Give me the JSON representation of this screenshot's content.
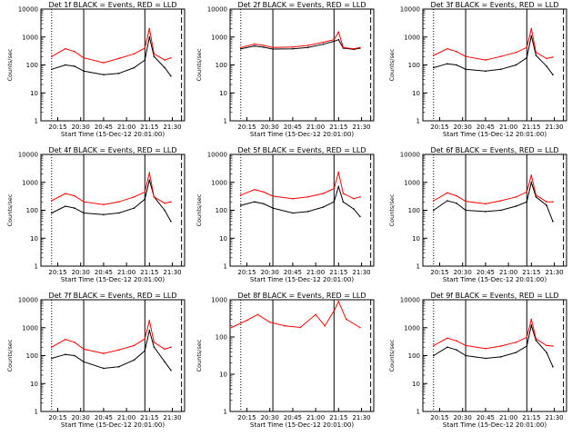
{
  "figure": {
    "xlabel": "Start Time (15-Dec-12 20:01:00)",
    "ylabel": "Counts/sec",
    "x_tick_labels": [
      "20:15",
      "20:30",
      "20:45",
      "21:00",
      "21:15",
      "21:30"
    ],
    "y_tick_labels": [
      "1",
      "10",
      "100",
      "1000",
      "10000"
    ],
    "colors": {
      "events": "#000000",
      "lld": "#ff0000",
      "axes": "#000000",
      "background": "#ffffff"
    }
  },
  "chart_data": [
    {
      "type": "line",
      "title": "Det 1f BLACK = Events, RED = LLD",
      "x": [
        "20:11",
        "20:20",
        "20:26",
        "20:32",
        "20:45",
        "20:55",
        "21:05",
        "21:12",
        "21:15",
        "21:18",
        "21:25",
        "21:29"
      ],
      "ylim": [
        1,
        10000
      ],
      "yscale": "log",
      "series": [
        {
          "name": "Events",
          "color": "#000000",
          "values": [
            70,
            100,
            90,
            60,
            45,
            50,
            80,
            150,
            1000,
            200,
            80,
            40
          ]
        },
        {
          "name": "LLD",
          "color": "#ff0000",
          "values": [
            200,
            380,
            300,
            180,
            120,
            170,
            250,
            400,
            2000,
            250,
            150,
            180
          ]
        }
      ]
    },
    {
      "type": "line",
      "title": "Det 2f BLACK = Events, RED = LLD",
      "x": [
        "20:11",
        "20:20",
        "20:26",
        "20:32",
        "20:45",
        "20:55",
        "21:05",
        "21:12",
        "21:15",
        "21:18",
        "21:25",
        "21:29"
      ],
      "ylim": [
        1,
        10000
      ],
      "yscale": "log",
      "series": [
        {
          "name": "Events",
          "color": "#000000",
          "values": [
            380,
            480,
            430,
            370,
            380,
            420,
            550,
            700,
            800,
            400,
            360,
            400
          ]
        },
        {
          "name": "LLD",
          "color": "#ff0000",
          "values": [
            420,
            560,
            500,
            420,
            440,
            500,
            650,
            800,
            1500,
            420,
            380,
            420
          ]
        }
      ]
    },
    {
      "type": "line",
      "title": "Det 3f BLACK = Events, RED = LLD",
      "x": [
        "20:11",
        "20:20",
        "20:26",
        "20:32",
        "20:45",
        "20:55",
        "21:05",
        "21:12",
        "21:15",
        "21:18",
        "21:25",
        "21:29"
      ],
      "ylim": [
        1,
        10000
      ],
      "yscale": "log",
      "series": [
        {
          "name": "Events",
          "color": "#000000",
          "values": [
            80,
            110,
            100,
            70,
            60,
            70,
            100,
            180,
            1100,
            220,
            90,
            45
          ]
        },
        {
          "name": "LLD",
          "color": "#ff0000",
          "values": [
            220,
            380,
            300,
            200,
            150,
            200,
            280,
            420,
            2000,
            280,
            170,
            190
          ]
        }
      ]
    },
    {
      "type": "line",
      "title": "Det 4f BLACK = Events, RED = LLD",
      "x": [
        "20:11",
        "20:20",
        "20:26",
        "20:32",
        "20:45",
        "20:55",
        "21:05",
        "21:12",
        "21:15",
        "21:18",
        "21:25",
        "21:29"
      ],
      "ylim": [
        1,
        10000
      ],
      "yscale": "log",
      "series": [
        {
          "name": "Events",
          "color": "#000000",
          "values": [
            80,
            140,
            120,
            80,
            70,
            80,
            120,
            250,
            1200,
            300,
            100,
            40
          ]
        },
        {
          "name": "LLD",
          "color": "#ff0000",
          "values": [
            220,
            400,
            330,
            200,
            160,
            200,
            300,
            450,
            2200,
            300,
            180,
            200
          ]
        }
      ]
    },
    {
      "type": "line",
      "title": "Det 5f BLACK = Events, RED = LLD",
      "x": [
        "20:11",
        "20:20",
        "20:26",
        "20:32",
        "20:45",
        "20:55",
        "21:05",
        "21:12",
        "21:15",
        "21:18",
        "21:25",
        "21:29"
      ],
      "ylim": [
        1,
        10000
      ],
      "yscale": "log",
      "series": [
        {
          "name": "Events",
          "color": "#000000",
          "values": [
            150,
            200,
            170,
            120,
            80,
            90,
            130,
            200,
            700,
            200,
            110,
            60
          ]
        },
        {
          "name": "LLD",
          "color": "#ff0000",
          "values": [
            350,
            550,
            450,
            320,
            260,
            300,
            400,
            600,
            2300,
            400,
            260,
            300
          ]
        }
      ]
    },
    {
      "type": "line",
      "title": "Det 6f BLACK = Events, RED = LLD",
      "x": [
        "20:11",
        "20:20",
        "20:26",
        "20:32",
        "20:45",
        "20:55",
        "21:05",
        "21:12",
        "21:15",
        "21:18",
        "21:25",
        "21:29"
      ],
      "ylim": [
        1,
        10000
      ],
      "yscale": "log",
      "series": [
        {
          "name": "Events",
          "color": "#000000",
          "values": [
            100,
            220,
            180,
            100,
            90,
            100,
            140,
            200,
            1000,
            300,
            150,
            40
          ]
        },
        {
          "name": "LLD",
          "color": "#ff0000",
          "values": [
            220,
            420,
            330,
            210,
            170,
            220,
            300,
            450,
            1800,
            350,
            200,
            200
          ]
        }
      ]
    },
    {
      "type": "line",
      "title": "Det 7f BLACK = Events, RED = LLD",
      "x": [
        "20:11",
        "20:20",
        "20:26",
        "20:32",
        "20:45",
        "20:55",
        "21:05",
        "21:12",
        "21:15",
        "21:18",
        "21:25",
        "21:29"
      ],
      "ylim": [
        1,
        10000
      ],
      "yscale": "log",
      "series": [
        {
          "name": "Events",
          "color": "#000000",
          "values": [
            80,
            110,
            100,
            60,
            35,
            40,
            70,
            150,
            800,
            200,
            60,
            30
          ]
        },
        {
          "name": "LLD",
          "color": "#ff0000",
          "values": [
            200,
            380,
            300,
            170,
            120,
            160,
            230,
            400,
            1800,
            300,
            170,
            200
          ]
        }
      ]
    },
    {
      "type": "line",
      "title": "Det 8f BLACK = Events, RED = LLD",
      "x": [
        "20:05",
        "20:15",
        "20:22",
        "20:30",
        "20:40",
        "20:50",
        "21:00",
        "21:06",
        "21:12",
        "21:15",
        "21:20",
        "21:29"
      ],
      "ylim": [
        1,
        1000
      ],
      "yscale": "log",
      "series": [
        {
          "name": "LLD",
          "color": "#ff0000",
          "values": [
            180,
            280,
            400,
            250,
            200,
            180,
            400,
            200,
            500,
            900,
            300,
            180
          ]
        }
      ]
    },
    {
      "type": "line",
      "title": "Det 9f BLACK = Events, RED = LLD",
      "x": [
        "20:11",
        "20:20",
        "20:26",
        "20:32",
        "20:45",
        "20:55",
        "21:05",
        "21:12",
        "21:15",
        "21:18",
        "21:25",
        "21:29"
      ],
      "ylim": [
        1,
        10000
      ],
      "yscale": "log",
      "series": [
        {
          "name": "Events",
          "color": "#000000",
          "values": [
            100,
            200,
            160,
            100,
            80,
            90,
            130,
            220,
            1200,
            350,
            130,
            40
          ]
        },
        {
          "name": "LLD",
          "color": "#ff0000",
          "values": [
            230,
            420,
            340,
            230,
            180,
            220,
            300,
            450,
            2000,
            400,
            230,
            220
          ]
        }
      ]
    }
  ]
}
